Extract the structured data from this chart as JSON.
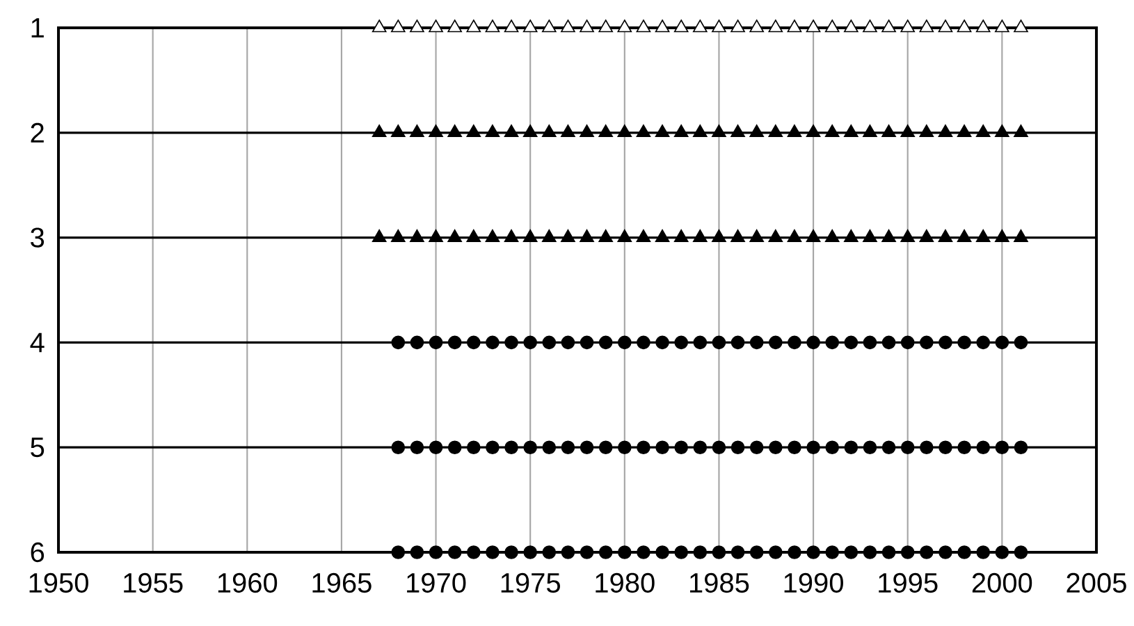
{
  "chart_data": {
    "type": "scatter",
    "xlim": [
      1950,
      2005
    ],
    "xticks": [
      1950,
      1955,
      1960,
      1965,
      1970,
      1975,
      1980,
      1985,
      1990,
      1995,
      2000,
      2005
    ],
    "ylim": [
      6,
      1
    ],
    "yticks": [
      1,
      2,
      3,
      4,
      5,
      6
    ],
    "grid": true,
    "series": [
      {
        "color": "#ffffff",
        "marker": "triangle",
        "x": [
          1967,
          1968,
          1969,
          1970,
          1971,
          1972,
          1973,
          1974,
          1975,
          1976,
          1977,
          1978,
          1979,
          1980,
          1981,
          1982,
          1983,
          1984,
          1985,
          1986,
          1987,
          1988,
          1989,
          1990,
          1991,
          1992,
          1993,
          1994,
          1995,
          1996,
          1997,
          1998,
          1999,
          2000,
          2001
        ],
        "values": [
          1,
          1,
          1,
          1,
          1,
          1,
          1,
          1,
          1,
          1,
          1,
          1,
          1,
          1,
          1,
          1,
          1,
          1,
          1,
          1,
          1,
          1,
          1,
          1,
          1,
          1,
          1,
          1,
          1,
          1,
          1,
          1,
          1,
          1,
          1
        ]
      },
      {
        "color": "#000000",
        "marker": "triangle",
        "x": [
          1967,
          1968,
          1969,
          1970,
          1971,
          1972,
          1973,
          1974,
          1975,
          1976,
          1977,
          1978,
          1979,
          1980,
          1981,
          1982,
          1983,
          1984,
          1985,
          1986,
          1987,
          1988,
          1989,
          1990,
          1991,
          1992,
          1993,
          1994,
          1995,
          1996,
          1997,
          1998,
          1999,
          2000,
          2001
        ],
        "values": [
          2,
          2,
          2,
          2,
          2,
          2,
          2,
          2,
          2,
          2,
          2,
          2,
          2,
          2,
          2,
          2,
          2,
          2,
          2,
          2,
          2,
          2,
          2,
          2,
          2,
          2,
          2,
          2,
          2,
          2,
          2,
          2,
          2,
          2,
          2
        ]
      },
      {
        "color": "#000000",
        "marker": "triangle",
        "x": [
          1967,
          1968,
          1969,
          1970,
          1971,
          1972,
          1973,
          1974,
          1975,
          1976,
          1977,
          1978,
          1979,
          1980,
          1981,
          1982,
          1983,
          1984,
          1985,
          1986,
          1987,
          1988,
          1989,
          1990,
          1991,
          1992,
          1993,
          1994,
          1995,
          1996,
          1997,
          1998,
          1999,
          2000,
          2001
        ],
        "values": [
          3,
          3,
          3,
          3,
          3,
          3,
          3,
          3,
          3,
          3,
          3,
          3,
          3,
          3,
          3,
          3,
          3,
          3,
          3,
          3,
          3,
          3,
          3,
          3,
          3,
          3,
          3,
          3,
          3,
          3,
          3,
          3,
          3,
          3,
          3
        ]
      },
      {
        "color": "#000000",
        "marker": "circle",
        "x": [
          1968,
          1969,
          1970,
          1971,
          1972,
          1973,
          1974,
          1975,
          1976,
          1977,
          1978,
          1979,
          1980,
          1981,
          1982,
          1983,
          1984,
          1985,
          1986,
          1987,
          1988,
          1989,
          1990,
          1991,
          1992,
          1993,
          1994,
          1995,
          1996,
          1997,
          1998,
          1999,
          2000,
          2001
        ],
        "values": [
          4,
          4,
          4,
          4,
          4,
          4,
          4,
          4,
          4,
          4,
          4,
          4,
          4,
          4,
          4,
          4,
          4,
          4,
          4,
          4,
          4,
          4,
          4,
          4,
          4,
          4,
          4,
          4,
          4,
          4,
          4,
          4,
          4,
          4
        ]
      },
      {
        "color": "#000000",
        "marker": "circle",
        "x": [
          1968,
          1969,
          1970,
          1971,
          1972,
          1973,
          1974,
          1975,
          1976,
          1977,
          1978,
          1979,
          1980,
          1981,
          1982,
          1983,
          1984,
          1985,
          1986,
          1987,
          1988,
          1989,
          1990,
          1991,
          1992,
          1993,
          1994,
          1995,
          1996,
          1997,
          1998,
          1999,
          2000,
          2001
        ],
        "values": [
          5,
          5,
          5,
          5,
          5,
          5,
          5,
          5,
          5,
          5,
          5,
          5,
          5,
          5,
          5,
          5,
          5,
          5,
          5,
          5,
          5,
          5,
          5,
          5,
          5,
          5,
          5,
          5,
          5,
          5,
          5,
          5,
          5,
          5
        ]
      },
      {
        "color": "#000000",
        "marker": "circle",
        "x": [
          1968,
          1969,
          1970,
          1971,
          1972,
          1973,
          1974,
          1975,
          1976,
          1977,
          1978,
          1979,
          1980,
          1981,
          1982,
          1983,
          1984,
          1985,
          1986,
          1987,
          1988,
          1989,
          1990,
          1991,
          1992,
          1993,
          1994,
          1995,
          1996,
          1997,
          1998,
          1999,
          2000,
          2001
        ],
        "values": [
          6,
          6,
          6,
          6,
          6,
          6,
          6,
          6,
          6,
          6,
          6,
          6,
          6,
          6,
          6,
          6,
          6,
          6,
          6,
          6,
          6,
          6,
          6,
          6,
          6,
          6,
          6,
          6,
          6,
          6,
          6,
          6,
          6,
          6
        ]
      }
    ]
  }
}
